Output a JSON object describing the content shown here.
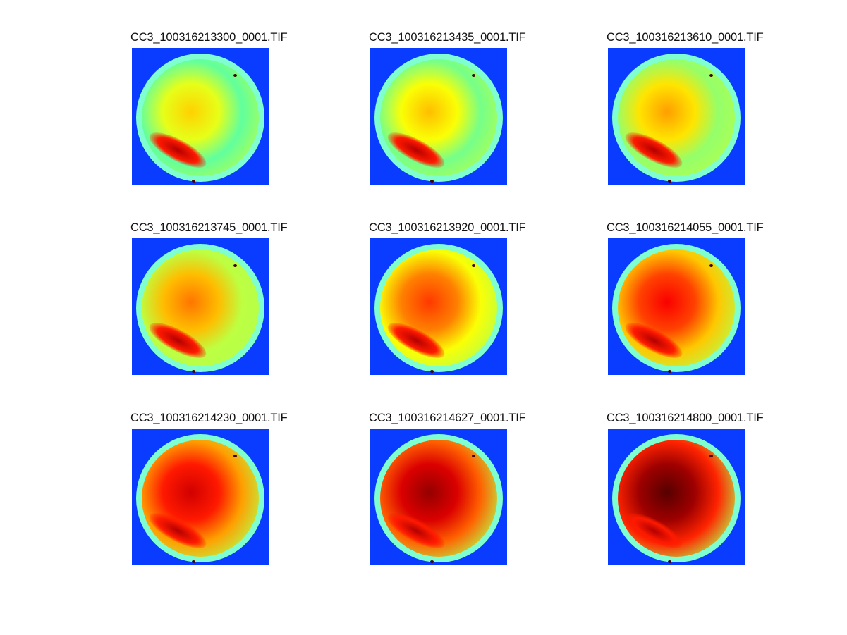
{
  "chart_data": {
    "type": "heatmap",
    "layout": "3x3 image grid",
    "colormap": "jet",
    "panels": [
      {
        "title": "CC3_100316213300_0001.TIF",
        "brightness": 0.55
      },
      {
        "title": "CC3_100316213435_0001.TIF",
        "brightness": 0.57
      },
      {
        "title": "CC3_100316213610_0001.TIF",
        "brightness": 0.6
      },
      {
        "title": "CC3_100316213745_0001.TIF",
        "brightness": 0.64
      },
      {
        "title": "CC3_100316213920_0001.TIF",
        "brightness": 0.7
      },
      {
        "title": "CC3_100316214055_0001.TIF",
        "brightness": 0.76
      },
      {
        "title": "CC3_100316214230_0001.TIF",
        "brightness": 0.8
      },
      {
        "title": "CC3_100316214627_0001.TIF",
        "brightness": 0.86
      },
      {
        "title": "CC3_100316214800_0001.TIF",
        "brightness": 0.92
      }
    ]
  }
}
